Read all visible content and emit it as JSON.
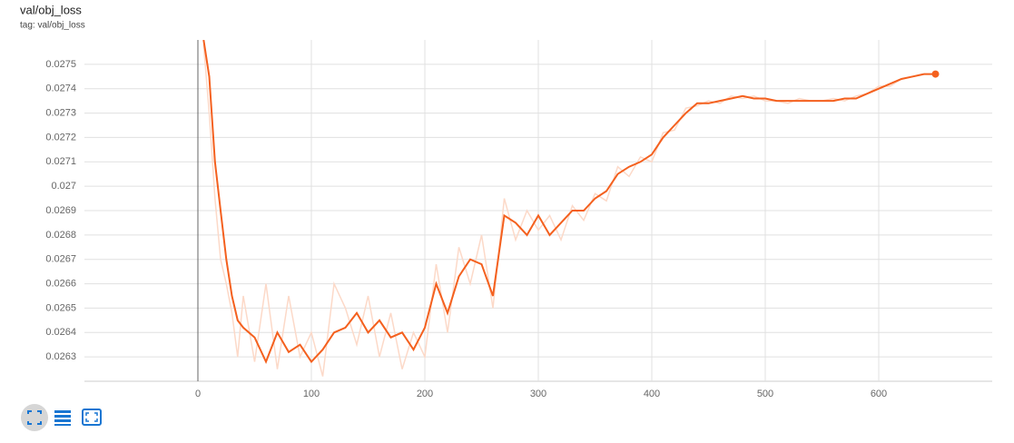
{
  "chart_data": {
    "type": "line",
    "title": "val/obj_loss",
    "subtitle": "tag: val/obj_loss",
    "x": [
      5,
      10,
      15,
      20,
      25,
      30,
      35,
      40,
      50,
      60,
      70,
      80,
      90,
      100,
      110,
      120,
      130,
      140,
      150,
      160,
      170,
      180,
      190,
      200,
      210,
      220,
      230,
      240,
      250,
      260,
      270,
      280,
      290,
      300,
      310,
      320,
      330,
      340,
      350,
      360,
      370,
      380,
      390,
      400,
      410,
      420,
      430,
      440,
      450,
      460,
      470,
      480,
      490,
      500,
      510,
      520,
      530,
      540,
      550,
      560,
      570,
      580,
      590,
      600,
      610,
      620,
      630,
      640,
      650
    ],
    "series": [
      {
        "color": "#fcd9c8",
        "values": [
          0.02758,
          0.0273,
          0.02695,
          0.0267,
          0.0266,
          0.02648,
          0.0263,
          0.02655,
          0.02628,
          0.0266,
          0.02625,
          0.02655,
          0.0263,
          0.0264,
          0.02622,
          0.0266,
          0.0265,
          0.02635,
          0.02655,
          0.0263,
          0.02648,
          0.02625,
          0.0264,
          0.0263,
          0.02668,
          0.0264,
          0.02675,
          0.0266,
          0.0268,
          0.0265,
          0.02695,
          0.02678,
          0.0269,
          0.02682,
          0.02688,
          0.02678,
          0.02692,
          0.02686,
          0.02697,
          0.02694,
          0.02708,
          0.02704,
          0.02712,
          0.0271,
          0.02722,
          0.02723,
          0.02732,
          0.02733,
          0.02735,
          0.02734,
          0.02737,
          0.02736,
          0.02737,
          0.02735,
          0.02735,
          0.02734,
          0.02736,
          0.02735,
          0.02735,
          0.02736,
          0.02735,
          0.02737,
          0.02738,
          0.02741,
          0.02741,
          0.02744,
          0.02745,
          0.02746,
          0.02746
        ]
      },
      {
        "color": "#f4601e",
        "values": [
          0.0276,
          0.02745,
          0.0271,
          0.0269,
          0.0267,
          0.02655,
          0.02645,
          0.02642,
          0.02638,
          0.02628,
          0.0264,
          0.02632,
          0.02635,
          0.02628,
          0.02633,
          0.0264,
          0.02642,
          0.02648,
          0.0264,
          0.02645,
          0.02638,
          0.0264,
          0.02633,
          0.02642,
          0.0266,
          0.02648,
          0.02663,
          0.0267,
          0.02668,
          0.02655,
          0.02688,
          0.02685,
          0.0268,
          0.02688,
          0.0268,
          0.02685,
          0.0269,
          0.0269,
          0.02695,
          0.02698,
          0.02705,
          0.02708,
          0.0271,
          0.02713,
          0.0272,
          0.02725,
          0.0273,
          0.02734,
          0.02734,
          0.02735,
          0.02736,
          0.02737,
          0.02736,
          0.02736,
          0.02735,
          0.02735,
          0.02735,
          0.02735,
          0.02735,
          0.02735,
          0.02736,
          0.02736,
          0.02738,
          0.0274,
          0.02742,
          0.02744,
          0.02745,
          0.02746,
          0.02746
        ]
      }
    ],
    "xlim": [
      -100,
      700
    ],
    "xticks": [
      0,
      100,
      200,
      300,
      400,
      500,
      600
    ],
    "ylim": [
      0.0262,
      0.0276
    ],
    "yticks": [
      0.0263,
      0.0264,
      0.0265,
      0.0266,
      0.0267,
      0.0268,
      0.0269,
      0.027,
      0.0271,
      0.0272,
      0.0273,
      0.0274,
      0.0275
    ],
    "grid": true
  }
}
